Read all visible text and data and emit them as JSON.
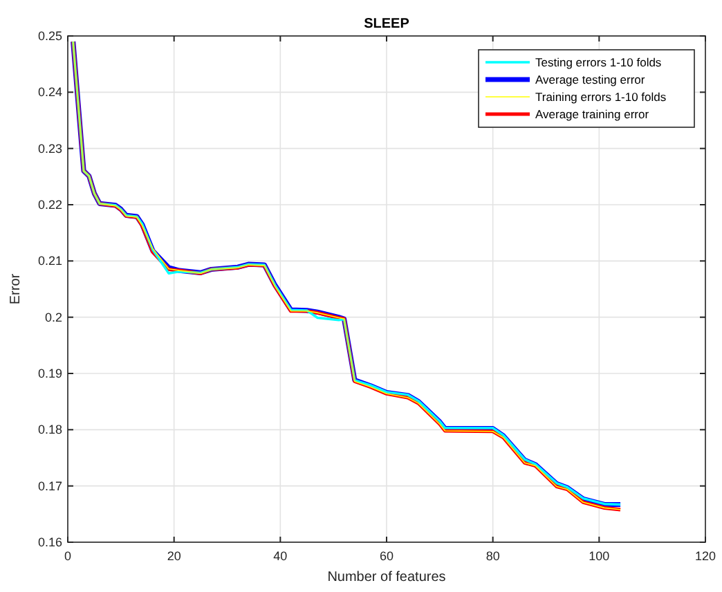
{
  "chart_data": {
    "type": "line",
    "title": "SLEEP",
    "xlabel": "Number of features",
    "ylabel": "Error",
    "x": [
      1,
      3,
      4,
      5,
      6,
      9,
      10,
      11,
      13,
      14,
      16,
      19,
      21,
      25,
      27,
      32,
      34,
      37,
      39,
      42,
      45,
      47,
      51,
      52,
      54,
      57,
      60,
      64,
      66,
      70,
      71,
      80,
      82,
      86,
      88,
      92,
      94,
      97,
      101,
      104
    ],
    "series": [
      {
        "name": "Testing errors 1-10 folds",
        "color": "#00ffff",
        "values": [
          0.249,
          0.226,
          0.2251,
          0.222,
          0.2202,
          0.2199,
          0.2192,
          0.2181,
          0.2179,
          0.2166,
          0.212,
          0.2078,
          0.2081,
          0.2079,
          0.2085,
          0.2089,
          0.2094,
          0.2093,
          0.2057,
          0.2013,
          0.2012,
          0.1999,
          0.1995,
          0.1996,
          0.1888,
          0.1879,
          0.1867,
          0.1862,
          0.1851,
          0.1815,
          0.1803,
          0.1803,
          0.179,
          0.1747,
          0.1739,
          0.1705,
          0.1698,
          0.1678,
          0.1668,
          0.1667
        ]
      },
      {
        "name": "Average testing error",
        "color": "#0000ff",
        "values": [
          0.249,
          0.226,
          0.2251,
          0.222,
          0.2202,
          0.2199,
          0.2192,
          0.2181,
          0.2179,
          0.2165,
          0.2118,
          0.2088,
          0.2083,
          0.2079,
          0.2085,
          0.2089,
          0.2094,
          0.2093,
          0.2057,
          0.2013,
          0.2012,
          0.2009,
          0.2,
          0.1997,
          0.1888,
          0.1878,
          0.1866,
          0.1861,
          0.185,
          0.1814,
          0.1802,
          0.1802,
          0.1789,
          0.1746,
          0.1738,
          0.1704,
          0.1697,
          0.1677,
          0.1667,
          0.1667
        ]
      },
      {
        "name": "Training errors 1-10 folds",
        "color": "#ffff00",
        "values": [
          0.249,
          0.226,
          0.2251,
          0.222,
          0.2202,
          0.2198,
          0.2191,
          0.218,
          0.2178,
          0.2163,
          0.2122,
          0.2086,
          0.2083,
          0.2078,
          0.2085,
          0.2088,
          0.2093,
          0.2092,
          0.2055,
          0.2011,
          0.2011,
          0.2008,
          0.1999,
          0.1997,
          0.1886,
          0.1876,
          0.1864,
          0.1857,
          0.1847,
          0.181,
          0.1798,
          0.1797,
          0.1786,
          0.1741,
          0.1736,
          0.1699,
          0.1694,
          0.1671,
          0.1661,
          0.1658
        ]
      },
      {
        "name": "Average training error",
        "color": "#ff0000",
        "values": [
          0.249,
          0.226,
          0.2251,
          0.222,
          0.2202,
          0.2198,
          0.2191,
          0.218,
          0.2178,
          0.2163,
          0.2116,
          0.2085,
          0.2083,
          0.2078,
          0.2085,
          0.2088,
          0.2093,
          0.2092,
          0.2055,
          0.2011,
          0.2011,
          0.2008,
          0.1999,
          0.1997,
          0.1886,
          0.1876,
          0.1864,
          0.1857,
          0.1847,
          0.181,
          0.1798,
          0.1797,
          0.1786,
          0.1741,
          0.1736,
          0.1699,
          0.1694,
          0.1671,
          0.1661,
          0.1658
        ]
      }
    ],
    "xlim": [
      0,
      120
    ],
    "xticks": [
      0,
      20,
      40,
      60,
      80,
      100,
      120
    ],
    "ylim": [
      0.16,
      0.25
    ],
    "yticks": [
      0.16,
      0.17,
      0.18,
      0.19,
      0.2,
      0.21,
      0.22,
      0.23,
      0.24,
      0.25
    ],
    "grid": true,
    "legend": "top right",
    "marker": "none",
    "line_style": "solid"
  }
}
